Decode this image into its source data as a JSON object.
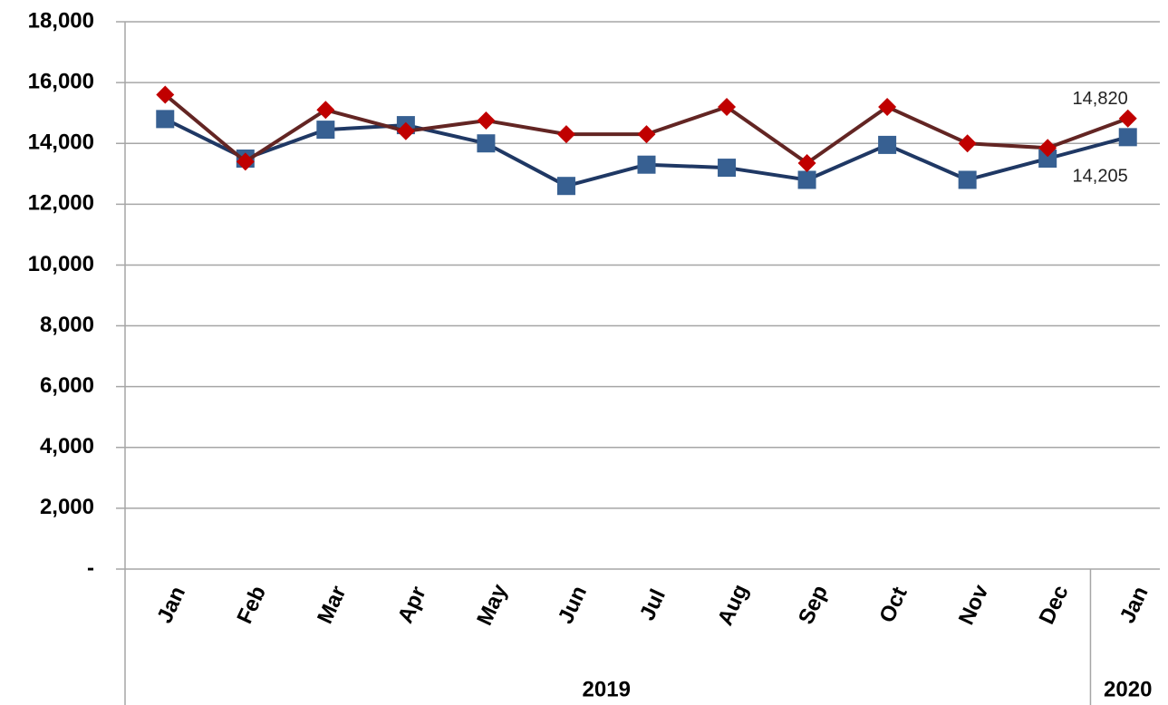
{
  "chart_data": {
    "type": "line",
    "categories": [
      "Jan",
      "Feb",
      "Mar",
      "Apr",
      "May",
      "Jun",
      "Jul",
      "Aug",
      "Sep",
      "Oct",
      "Nov",
      "Dec",
      "Jan"
    ],
    "year_groups": [
      {
        "label": "2019",
        "count": 12
      },
      {
        "label": "2020",
        "count": 1
      }
    ],
    "series": [
      {
        "color": "#1f3864",
        "marker_color": "#376092",
        "marker": "square",
        "values": [
          14800,
          13500,
          14450,
          14600,
          14000,
          12600,
          13300,
          13200,
          12800,
          13950,
          12800,
          13500,
          14205
        ],
        "value_labels": [
          null,
          null,
          null,
          null,
          null,
          null,
          null,
          null,
          null,
          null,
          null,
          null,
          "14,205"
        ]
      },
      {
        "color": "#632523",
        "marker_color": "#c00000",
        "marker": "diamond",
        "values": [
          15600,
          13400,
          15100,
          14400,
          14750,
          14300,
          14300,
          15200,
          13350,
          15200,
          14000,
          13850,
          14820
        ],
        "value_labels": [
          null,
          null,
          null,
          null,
          null,
          null,
          null,
          null,
          null,
          null,
          null,
          null,
          "14,820"
        ]
      }
    ],
    "ylim": [
      0,
      18000
    ],
    "yticks": [
      {
        "value": 0,
        "label": "-"
      },
      {
        "value": 2000,
        "label": "2,000"
      },
      {
        "value": 4000,
        "label": "4,000"
      },
      {
        "value": 6000,
        "label": "6,000"
      },
      {
        "value": 8000,
        "label": "8,000"
      },
      {
        "value": 10000,
        "label": "10,000"
      },
      {
        "value": 12000,
        "label": "12,000"
      },
      {
        "value": 14000,
        "label": "14,000"
      },
      {
        "value": 16000,
        "label": "16,000"
      },
      {
        "value": 18000,
        "label": "18,000"
      }
    ],
    "grid": true
  }
}
